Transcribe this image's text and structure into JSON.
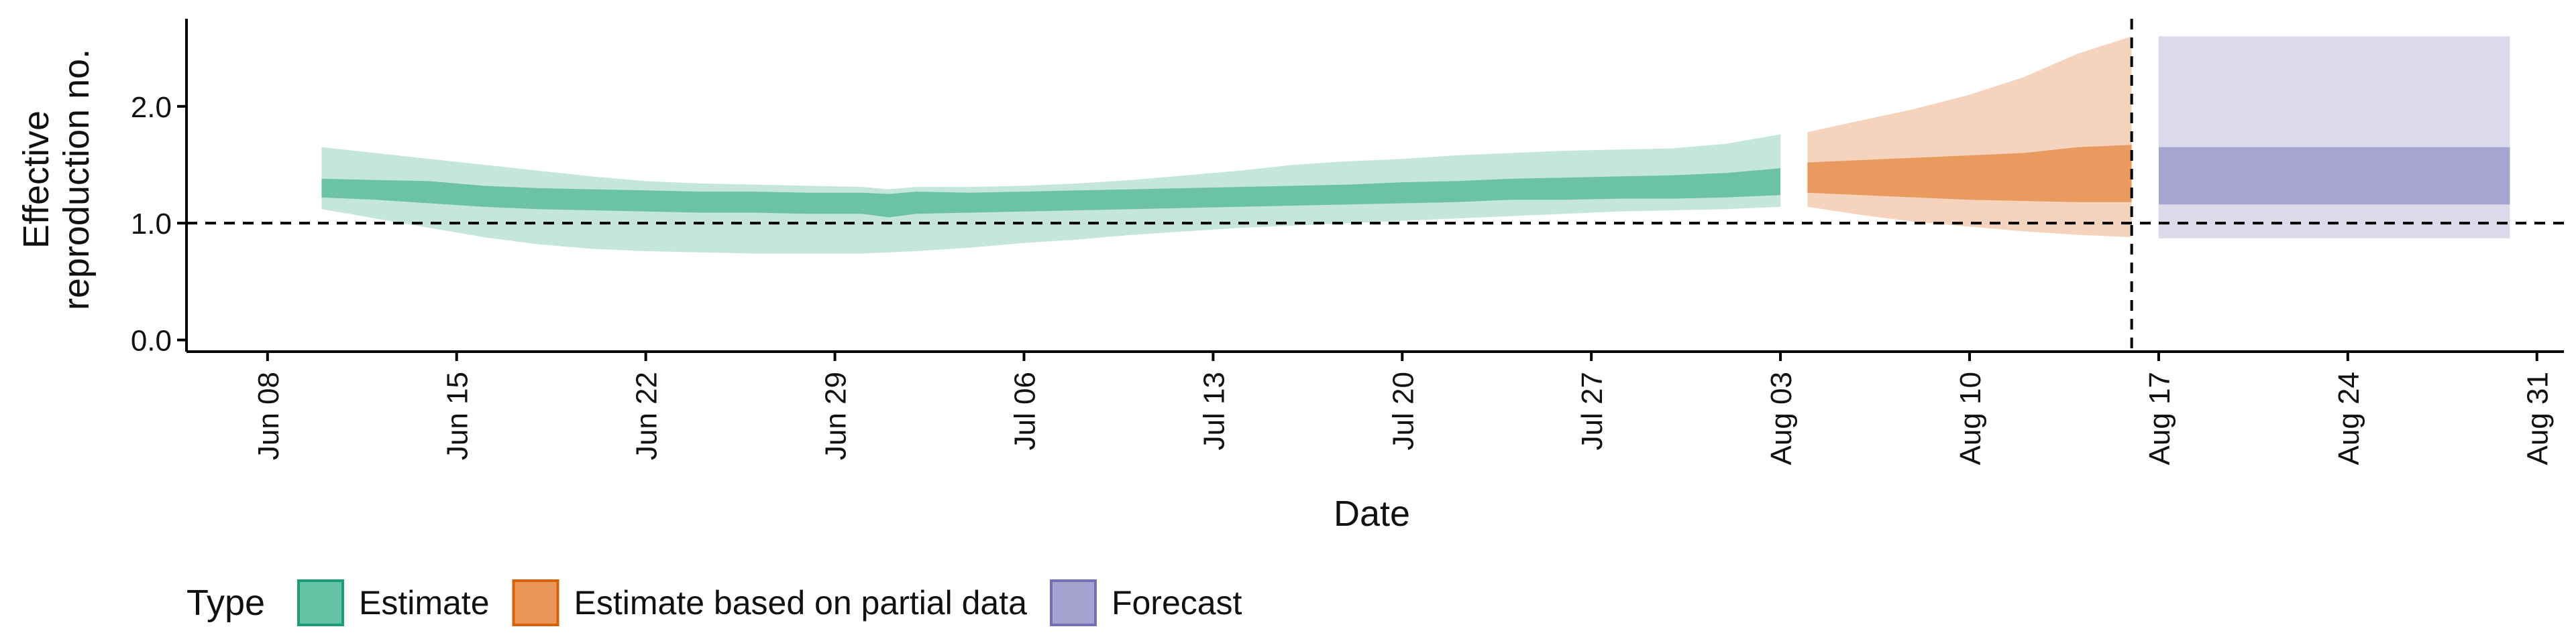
{
  "chart_data": {
    "type": "area",
    "xlabel": "Date",
    "ylabel_lines": [
      "Effective",
      "reproduction no."
    ],
    "ylim": [
      -0.1,
      2.75
    ],
    "xlim": [
      "2020-06-05",
      "2020-09-01"
    ],
    "y_ticks": [
      {
        "value": 0.0,
        "label": "0.0"
      },
      {
        "value": 1.0,
        "label": "1.0"
      },
      {
        "value": 2.0,
        "label": "2.0"
      }
    ],
    "x_ticks": [
      {
        "date": "2020-06-08",
        "label": "Jun 08"
      },
      {
        "date": "2020-06-15",
        "label": "Jun 15"
      },
      {
        "date": "2020-06-22",
        "label": "Jun 22"
      },
      {
        "date": "2020-06-29",
        "label": "Jun 29"
      },
      {
        "date": "2020-07-06",
        "label": "Jul 06"
      },
      {
        "date": "2020-07-13",
        "label": "Jul 13"
      },
      {
        "date": "2020-07-20",
        "label": "Jul 20"
      },
      {
        "date": "2020-07-27",
        "label": "Jul 27"
      },
      {
        "date": "2020-08-03",
        "label": "Aug 03"
      },
      {
        "date": "2020-08-10",
        "label": "Aug 10"
      },
      {
        "date": "2020-08-17",
        "label": "Aug 17"
      },
      {
        "date": "2020-08-24",
        "label": "Aug 24"
      },
      {
        "date": "2020-08-31",
        "label": "Aug 31"
      }
    ],
    "reference_line_y": 1.0,
    "vertical_line_date": "2020-08-16",
    "legend": {
      "title": "Type",
      "position": "bottom",
      "items": [
        {
          "label": "Estimate",
          "fill": "#66c2a5",
          "stroke": "#1b9e77"
        },
        {
          "label": "Estimate based on partial data",
          "fill": "#e8955a",
          "stroke": "#d95f02"
        },
        {
          "label": "Forecast",
          "fill": "#a6a3d0",
          "stroke": "#7570b3"
        }
      ]
    },
    "series": [
      {
        "name": "Estimate",
        "inner_color": "#6cc2a4",
        "outer_color": "#c5e6da",
        "x": [
          "2020-06-10",
          "2020-06-12",
          "2020-06-14",
          "2020-06-16",
          "2020-06-18",
          "2020-06-20",
          "2020-06-22",
          "2020-06-24",
          "2020-06-26",
          "2020-06-28",
          "2020-06-30",
          "2020-07-01",
          "2020-07-02",
          "2020-07-04",
          "2020-07-06",
          "2020-07-08",
          "2020-07-10",
          "2020-07-12",
          "2020-07-14",
          "2020-07-16",
          "2020-07-18",
          "2020-07-20",
          "2020-07-22",
          "2020-07-24",
          "2020-07-26",
          "2020-07-28",
          "2020-07-30",
          "2020-08-01",
          "2020-08-03"
        ],
        "outer_upper": [
          1.65,
          1.6,
          1.55,
          1.5,
          1.45,
          1.4,
          1.36,
          1.34,
          1.33,
          1.32,
          1.31,
          1.29,
          1.31,
          1.31,
          1.32,
          1.34,
          1.37,
          1.41,
          1.45,
          1.5,
          1.53,
          1.55,
          1.58,
          1.6,
          1.62,
          1.63,
          1.64,
          1.68,
          1.76
        ],
        "inner_upper": [
          1.38,
          1.37,
          1.36,
          1.32,
          1.3,
          1.29,
          1.28,
          1.27,
          1.27,
          1.26,
          1.26,
          1.25,
          1.27,
          1.26,
          1.27,
          1.28,
          1.29,
          1.3,
          1.31,
          1.32,
          1.33,
          1.35,
          1.36,
          1.38,
          1.39,
          1.4,
          1.41,
          1.43,
          1.47
        ],
        "inner_lower": [
          1.22,
          1.2,
          1.17,
          1.14,
          1.12,
          1.11,
          1.1,
          1.09,
          1.09,
          1.08,
          1.08,
          1.05,
          1.08,
          1.09,
          1.1,
          1.11,
          1.12,
          1.13,
          1.14,
          1.15,
          1.16,
          1.17,
          1.18,
          1.2,
          1.2,
          1.21,
          1.21,
          1.22,
          1.24
        ],
        "outer_lower": [
          1.12,
          1.04,
          0.96,
          0.88,
          0.82,
          0.78,
          0.76,
          0.75,
          0.74,
          0.74,
          0.74,
          0.75,
          0.76,
          0.79,
          0.83,
          0.86,
          0.9,
          0.93,
          0.96,
          0.98,
          1.0,
          1.02,
          1.04,
          1.06,
          1.08,
          1.1,
          1.11,
          1.12,
          1.14
        ]
      },
      {
        "name": "Estimate based on partial data",
        "inner_color": "#e89a5f",
        "outer_color": "#f5d3bd",
        "x": [
          "2020-08-04",
          "2020-08-06",
          "2020-08-08",
          "2020-08-10",
          "2020-08-12",
          "2020-08-14",
          "2020-08-16"
        ],
        "outer_upper": [
          1.78,
          1.88,
          1.98,
          2.1,
          2.25,
          2.45,
          2.6
        ],
        "inner_upper": [
          1.52,
          1.54,
          1.56,
          1.58,
          1.6,
          1.65,
          1.67
        ],
        "inner_lower": [
          1.26,
          1.24,
          1.22,
          1.2,
          1.19,
          1.18,
          1.18
        ],
        "outer_lower": [
          1.14,
          1.07,
          1.01,
          0.97,
          0.93,
          0.9,
          0.88
        ]
      },
      {
        "name": "Forecast",
        "inner_color": "#a7a4d0",
        "outer_color": "#dadaeb",
        "x": [
          "2020-08-17",
          "2020-08-30"
        ],
        "outer_upper": [
          2.6,
          2.6
        ],
        "inner_upper": [
          1.65,
          1.65
        ],
        "inner_lower": [
          1.16,
          1.16
        ],
        "outer_lower": [
          0.87,
          0.87
        ]
      }
    ]
  }
}
